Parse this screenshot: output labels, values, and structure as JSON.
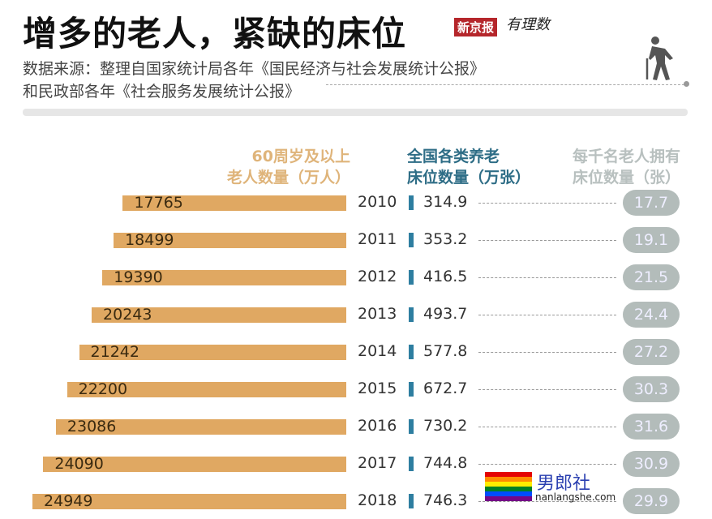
{
  "title": "增多的老人，紧缺的床位",
  "brand": {
    "name": "新京报",
    "column": "有理数"
  },
  "source": {
    "line1": "数据来源：整理自国家统计局各年《国民经济与社会发展统计公报》",
    "line2": "和民政部各年《社会服务发展统计公报》"
  },
  "watermark": {
    "name": "男郎社",
    "url": "nanlangshe.com"
  },
  "colors": {
    "elderly": "#e0a862",
    "beds": "#2e7ea0",
    "per_thousand": "#b3bcba"
  },
  "chart_data": {
    "type": "bar",
    "headers": {
      "elderly": "60周岁及以上\n老人数量（万人）",
      "beds": "全国各类养老\n床位数量（万张）",
      "per_thousand": "每千名老人拥有\n床位数量（张）"
    },
    "categories": [
      "2010",
      "2011",
      "2012",
      "2013",
      "2014",
      "2015",
      "2016",
      "2017",
      "2018"
    ],
    "series": [
      {
        "name": "60周岁及以上老人数量（万人）",
        "values": [
          17765,
          18499,
          19390,
          20243,
          21242,
          22200,
          23086,
          24090,
          24949
        ]
      },
      {
        "name": "全国各类养老床位数量（万张）",
        "values": [
          "314.9",
          "353.2",
          "416.5",
          "493.7",
          "577.8",
          "672.7",
          "730.2",
          "744.8",
          "746.3"
        ]
      },
      {
        "name": "每千名老人拥有床位数量（张）",
        "values": [
          "17.7",
          "19.1",
          "21.5",
          "24.4",
          "27.2",
          "30.3",
          "31.6",
          "30.9",
          "29.9"
        ]
      }
    ]
  }
}
